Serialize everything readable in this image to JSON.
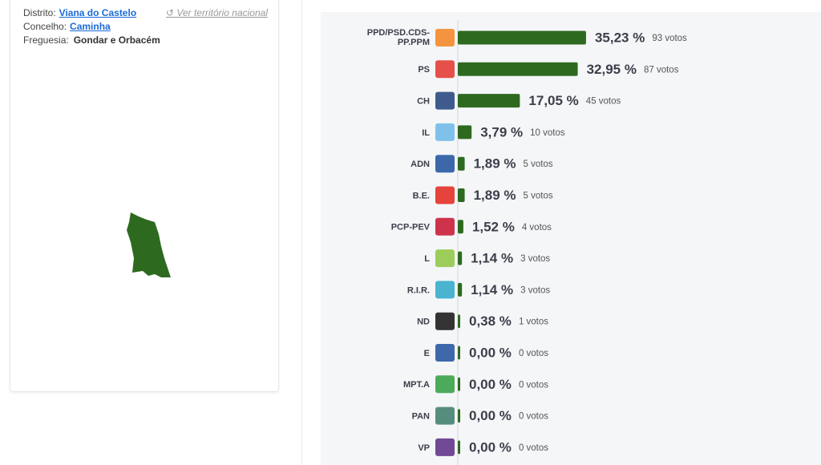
{
  "location": {
    "district_label": "Distrito:",
    "district": "Viana do Castelo",
    "council_label": "Concelho:",
    "council": "Caminha",
    "parish_label": "Freguesia:",
    "parish": "Gondar e Orbacém",
    "national_link": "Ver território nacional"
  },
  "chart_data": {
    "type": "bar",
    "color": "#2d6a1f",
    "xlim": [
      0,
      100
    ],
    "categories": [
      "PPD/PSD.CDS-PP.PPM",
      "PS",
      "CH",
      "IL",
      "ADN",
      "B.E.",
      "PCP-PEV",
      "L",
      "R.I.R.",
      "ND",
      "E",
      "MPT.A",
      "PAN",
      "VP"
    ],
    "values": [
      35.23,
      32.95,
      17.05,
      3.79,
      1.89,
      1.89,
      1.52,
      1.14,
      1.14,
      0.38,
      0,
      0,
      0,
      0
    ],
    "value_labels": [
      "35,23 %",
      "32,95 %",
      "17,05 %",
      "3,79 %",
      "1,89 %",
      "1,89 %",
      "1,52 %",
      "1,14 %",
      "1,14 %",
      "0,38 %",
      "0,00 %",
      "0,00 %",
      "0,00 %",
      "0,00 %"
    ],
    "votes": [
      "93 votos",
      "87 votos",
      "45 votos",
      "10 votos",
      "5 votos",
      "5 votos",
      "4 votos",
      "3 votos",
      "3 votos",
      "1 votos",
      "0 votos",
      "0 votos",
      "0 votos",
      "0 votos"
    ]
  }
}
